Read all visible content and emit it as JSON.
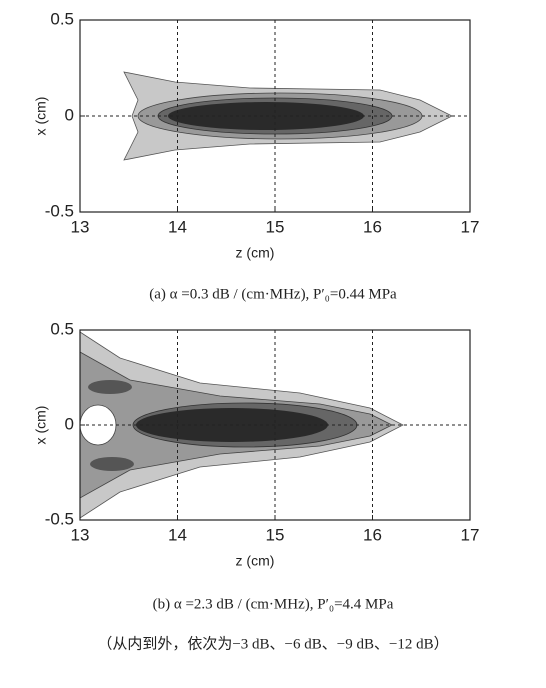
{
  "chart_data": [
    {
      "type": "contour",
      "xlabel": "z  (cm)",
      "ylabel": "x  (cm)",
      "xlim": [
        13,
        17
      ],
      "xticks": [
        13,
        14,
        15,
        16,
        17
      ],
      "ylim": [
        -0.5,
        0.5
      ],
      "yticks": [
        -0.5,
        0,
        0.5
      ],
      "grid": true,
      "caption": "(a)  α =0.3 dB / (cm·MHz),   P′₀=0.44 MPa"
    },
    {
      "type": "contour",
      "xlabel": "z  (cm)",
      "ylabel": "x  (cm)",
      "xlim": [
        13,
        17
      ],
      "xticks": [
        13,
        14,
        15,
        16,
        17
      ],
      "ylim": [
        -0.5,
        0.5
      ],
      "yticks": [
        -0.5,
        0,
        0.5
      ],
      "grid": true,
      "caption": "(b)  α =2.3 dB / (cm·MHz),   P′₀=4.4 MPa"
    }
  ],
  "note": "（从内到外，依次为−3 dB、−6 dB、−9 dB、−12 dB）"
}
